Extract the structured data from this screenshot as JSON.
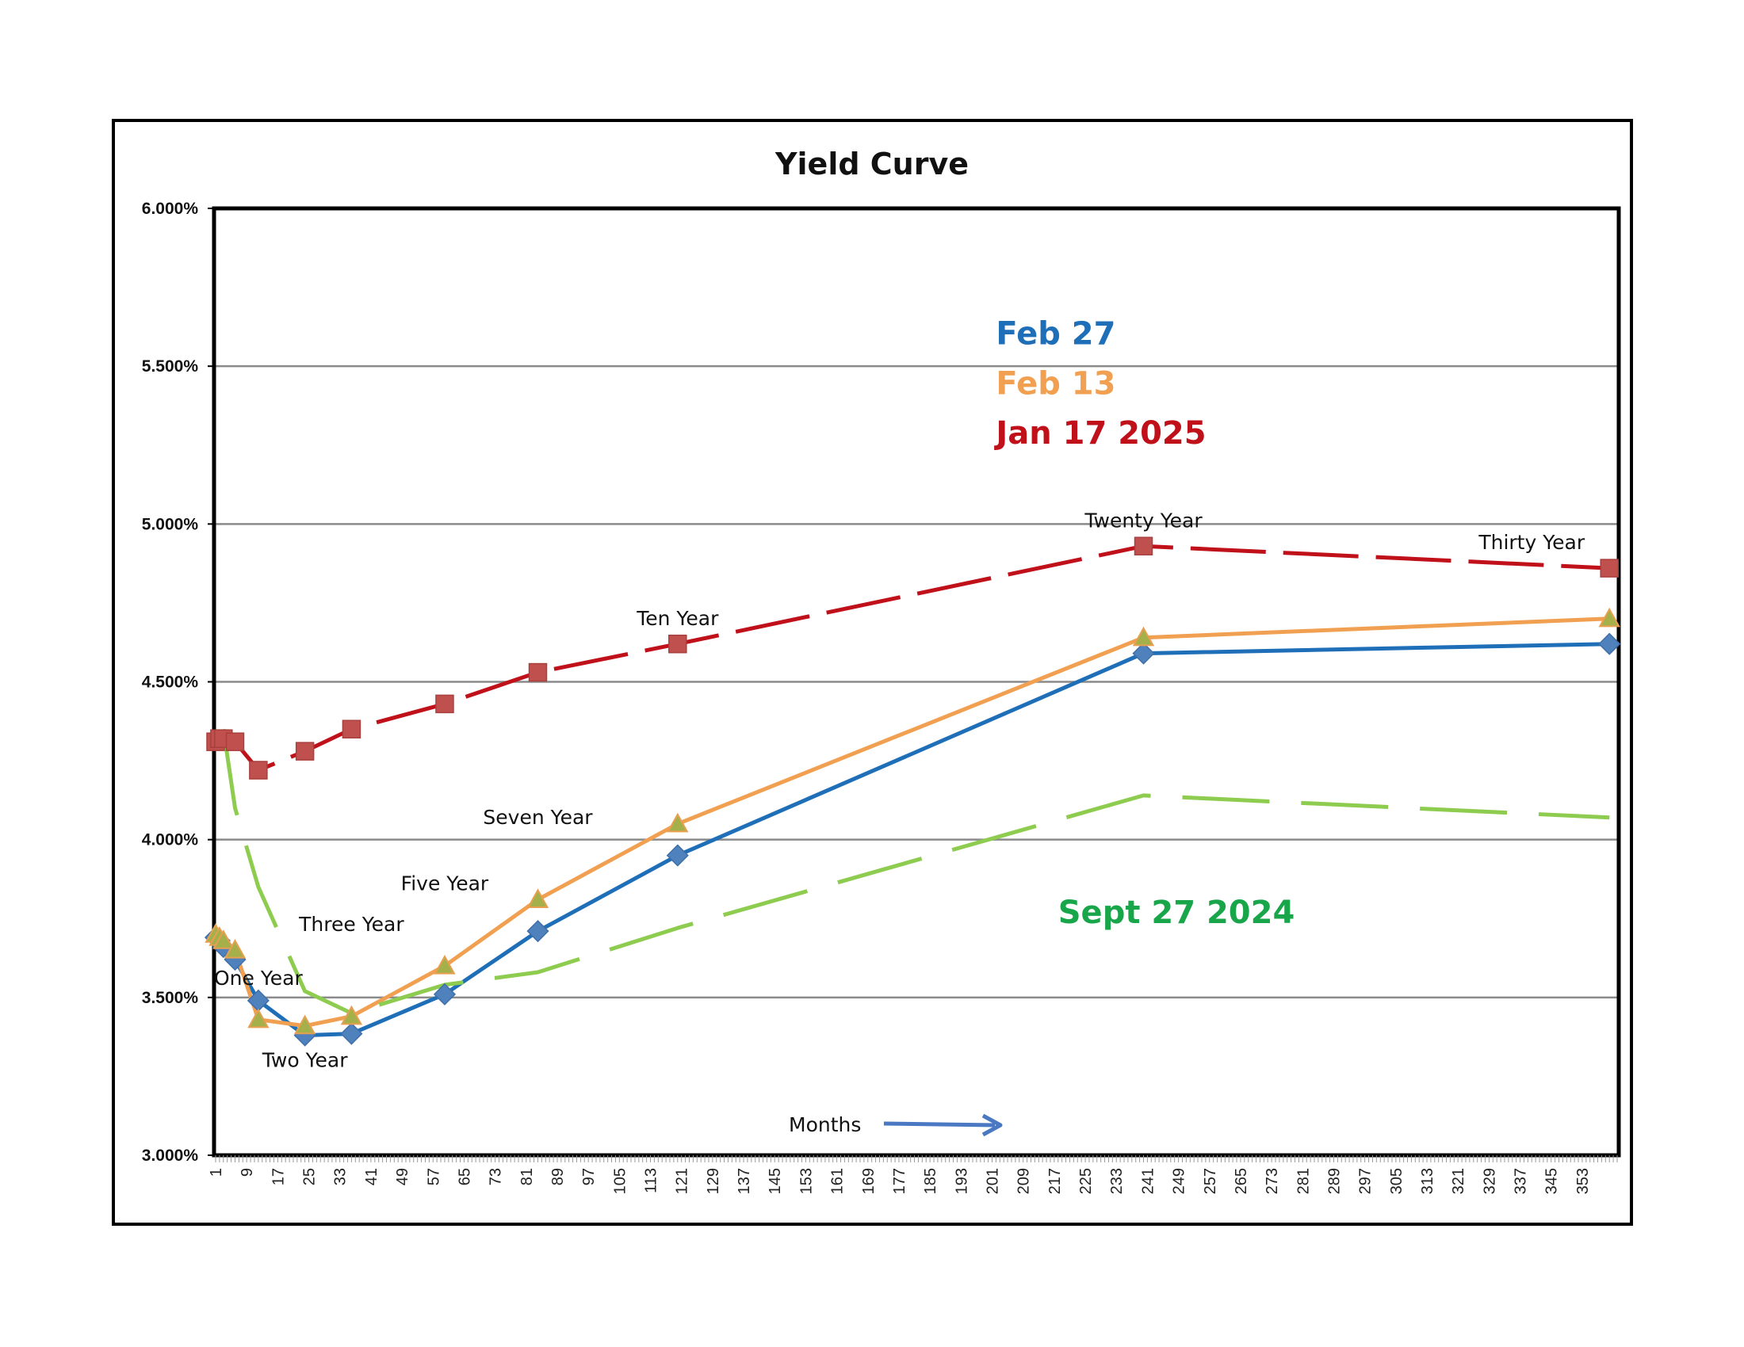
{
  "chart_data": {
    "type": "line",
    "title": "Yield Curve",
    "xlabel": "Months",
    "ylabel": "",
    "ylim": [
      0.03,
      0.06
    ],
    "yticks": [
      "3.000%",
      "3.500%",
      "4.000%",
      "4.500%",
      "5.000%",
      "5.500%",
      "6.000%"
    ],
    "xticks": [
      "1",
      "9",
      "17",
      "25",
      "33",
      "41",
      "49",
      "57",
      "65",
      "73",
      "81",
      "89",
      "97",
      "105",
      "113",
      "121",
      "129",
      "137",
      "145",
      "153",
      "161",
      "169",
      "177",
      "185",
      "193",
      "201",
      "209",
      "217",
      "225",
      "233",
      "241",
      "249",
      "257",
      "265",
      "273",
      "281",
      "289",
      "297",
      "305",
      "313",
      "321",
      "329",
      "337",
      "345",
      "353"
    ],
    "grid": true,
    "annotations": [
      {
        "text": "One Year",
        "x": 12,
        "y": 0.0354
      },
      {
        "text": "Two Year",
        "x": 24,
        "y": 0.0328
      },
      {
        "text": "Three Year",
        "x": 36,
        "y": 0.0371
      },
      {
        "text": "Five Year",
        "x": 60,
        "y": 0.0384
      },
      {
        "text": "Seven Year",
        "x": 84,
        "y": 0.0405
      },
      {
        "text": "Ten Year",
        "x": 120,
        "y": 0.0468
      },
      {
        "text": "Twenty Year",
        "x": 240,
        "y": 0.0499
      },
      {
        "text": "Thirty Year",
        "x": 340,
        "y": 0.0492
      }
    ],
    "series": [
      {
        "name": "Feb 27",
        "color": "#1f6fb8",
        "marker": "diamond",
        "x": [
          1,
          2,
          3,
          6,
          12,
          24,
          36,
          60,
          84,
          120,
          240,
          360
        ],
        "y": [
          0.0369,
          0.0368,
          0.0366,
          0.0362,
          0.0349,
          0.0338,
          0.03385,
          0.0351,
          0.0371,
          0.0395,
          0.0459,
          0.0462
        ]
      },
      {
        "name": "Feb 13",
        "color": "#f0a050",
        "marker": "triangle",
        "x": [
          1,
          2,
          3,
          6,
          12,
          24,
          36,
          60,
          84,
          120,
          240,
          360
        ],
        "y": [
          0.037,
          0.0369,
          0.0368,
          0.0365,
          0.0343,
          0.0341,
          0.0344,
          0.036,
          0.0381,
          0.0405,
          0.0464,
          0.047
        ]
      },
      {
        "name": "Jan 17 2025",
        "color": "#c0101a",
        "marker": "square",
        "x": [
          1,
          2,
          3,
          6,
          12,
          24,
          36,
          60,
          84,
          120,
          240,
          360
        ],
        "y": [
          0.0431,
          0.0432,
          0.0432,
          0.0431,
          0.0422,
          0.0428,
          0.0435,
          0.0443,
          0.0453,
          0.0462,
          0.0493,
          0.0486
        ]
      },
      {
        "name": "Sept 27 2024",
        "color": "#8dcc4e",
        "marker": "none",
        "x": [
          3,
          6,
          12,
          24,
          36,
          60,
          84,
          120,
          240,
          360
        ],
        "y": [
          0.0435,
          0.041,
          0.0385,
          0.0352,
          0.0345,
          0.0354,
          0.0358,
          0.0372,
          0.0414,
          0.0407
        ]
      }
    ],
    "legend": [
      {
        "text": "Feb 27",
        "color": "#1f6fb8"
      },
      {
        "text": "Feb 13",
        "color": "#f0a050"
      },
      {
        "text": "Jan 17 2025",
        "color": "#c0101a"
      },
      {
        "text": "Sept 27 2024",
        "color": "#19a64b"
      }
    ]
  }
}
